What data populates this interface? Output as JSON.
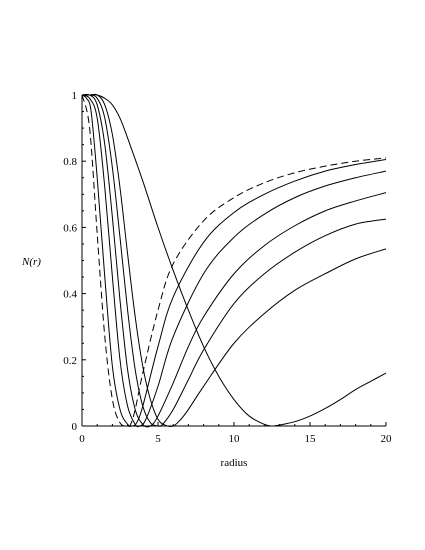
{
  "chart_data": {
    "type": "line",
    "xlabel": "radius",
    "ylabel": "N(r)",
    "xlim": [
      0,
      20
    ],
    "ylim": [
      0,
      1
    ],
    "x_ticks": [
      "0",
      "5",
      "10",
      "15",
      "20"
    ],
    "y_ticks": [
      "0",
      "0.2",
      "0.4",
      "0.6",
      "0.8",
      "1"
    ],
    "grid": false,
    "series": [
      {
        "style": "dashed",
        "x": [
          0,
          0.5,
          1,
          1.5,
          2,
          2.5,
          3,
          3.2,
          3.5,
          4,
          5,
          6,
          8,
          10,
          12,
          14,
          16,
          18,
          20
        ],
        "y": [
          1,
          0.9,
          0.58,
          0.27,
          0.08,
          0.01,
          0,
          0.005,
          0.05,
          0.16,
          0.35,
          0.49,
          0.62,
          0.69,
          0.735,
          0.765,
          0.785,
          0.8,
          0.81
        ]
      },
      {
        "style": "solid",
        "x": [
          0,
          0.3,
          0.6,
          1,
          1.5,
          2,
          2.5,
          3,
          3.3,
          3.6,
          4,
          5,
          6,
          8,
          10,
          12,
          14,
          16,
          18,
          20
        ],
        "y": [
          1,
          0.99,
          0.95,
          0.75,
          0.45,
          0.18,
          0.05,
          0.005,
          0,
          0.01,
          0.06,
          0.24,
          0.39,
          0.555,
          0.645,
          0.7,
          0.74,
          0.77,
          0.79,
          0.805
        ]
      },
      {
        "style": "solid",
        "x": [
          0,
          0.5,
          1,
          1.5,
          2,
          2.5,
          3,
          3.5,
          3.8,
          4.2,
          5,
          6,
          8,
          10,
          12,
          14,
          16,
          18,
          20
        ],
        "y": [
          1,
          0.99,
          0.93,
          0.72,
          0.45,
          0.2,
          0.06,
          0.005,
          0,
          0.02,
          0.12,
          0.27,
          0.46,
          0.57,
          0.64,
          0.69,
          0.725,
          0.75,
          0.77
        ]
      },
      {
        "style": "solid",
        "x": [
          0,
          0.5,
          1,
          1.5,
          2,
          2.5,
          3,
          3.5,
          4,
          4.5,
          5,
          6,
          7,
          8,
          10,
          12,
          14,
          16,
          18,
          20
        ],
        "y": [
          1,
          1,
          0.97,
          0.85,
          0.63,
          0.38,
          0.17,
          0.05,
          0.005,
          0,
          0.03,
          0.13,
          0.24,
          0.33,
          0.46,
          0.545,
          0.605,
          0.65,
          0.68,
          0.705
        ]
      },
      {
        "style": "solid",
        "x": [
          0,
          0.5,
          1,
          1.5,
          2,
          2.5,
          3,
          3.5,
          4,
          4.5,
          5,
          5.3,
          6,
          7,
          8,
          10,
          12,
          14,
          16,
          18,
          20
        ],
        "y": [
          1,
          1,
          0.99,
          0.93,
          0.78,
          0.57,
          0.35,
          0.17,
          0.06,
          0.01,
          0,
          0.005,
          0.05,
          0.14,
          0.23,
          0.37,
          0.46,
          0.525,
          0.575,
          0.61,
          0.625
        ]
      },
      {
        "style": "solid",
        "x": [
          0,
          0.5,
          1,
          1.5,
          2,
          2.5,
          3,
          3.5,
          4,
          4.5,
          5,
          5.5,
          6,
          6.5,
          7,
          8,
          10,
          12,
          14,
          16,
          18,
          20
        ],
        "y": [
          1,
          1,
          1,
          0.97,
          0.88,
          0.72,
          0.52,
          0.33,
          0.18,
          0.08,
          0.02,
          0.002,
          0,
          0.02,
          0.05,
          0.12,
          0.25,
          0.34,
          0.41,
          0.46,
          0.505,
          0.535
        ]
      },
      {
        "style": "solid",
        "x": [
          0,
          0.5,
          1,
          1.5,
          2,
          2.5,
          3,
          4,
          5,
          6,
          7,
          8,
          9,
          10,
          11,
          12,
          12.5,
          13,
          14,
          15,
          16,
          17,
          18,
          19,
          20
        ],
        "y": [
          1,
          1,
          1,
          0.99,
          0.97,
          0.93,
          0.87,
          0.74,
          0.6,
          0.47,
          0.35,
          0.24,
          0.15,
          0.08,
          0.03,
          0.005,
          0,
          0.003,
          0.013,
          0.03,
          0.053,
          0.08,
          0.11,
          0.135,
          0.16
        ]
      }
    ]
  }
}
